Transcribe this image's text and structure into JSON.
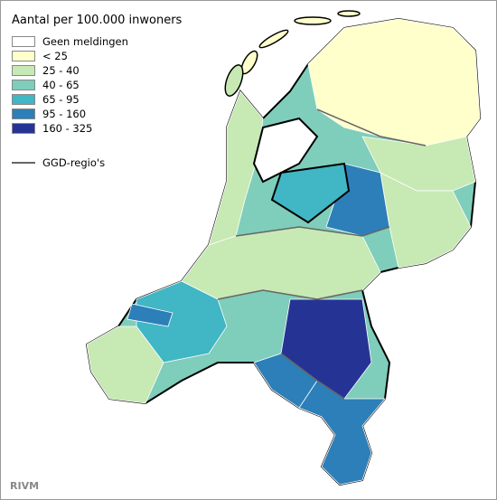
{
  "legend": {
    "title": "Aantal per 100.000 inwoners",
    "items": [
      {
        "label": "Geen meldingen",
        "color": "#ffffff"
      },
      {
        "label": "< 25",
        "color": "#ffffcc"
      },
      {
        "label": "25 - 40",
        "color": "#c7e9b4"
      },
      {
        "label": "40 - 65",
        "color": "#7fcdbb"
      },
      {
        "label": "65 - 95",
        "color": "#41b6c4"
      },
      {
        "label": "95 - 160",
        "color": "#2c7fb8"
      },
      {
        "label": "160 - 325",
        "color": "#253494"
      }
    ],
    "line_label": "GGD-regio's"
  },
  "footer": "RIVM"
}
